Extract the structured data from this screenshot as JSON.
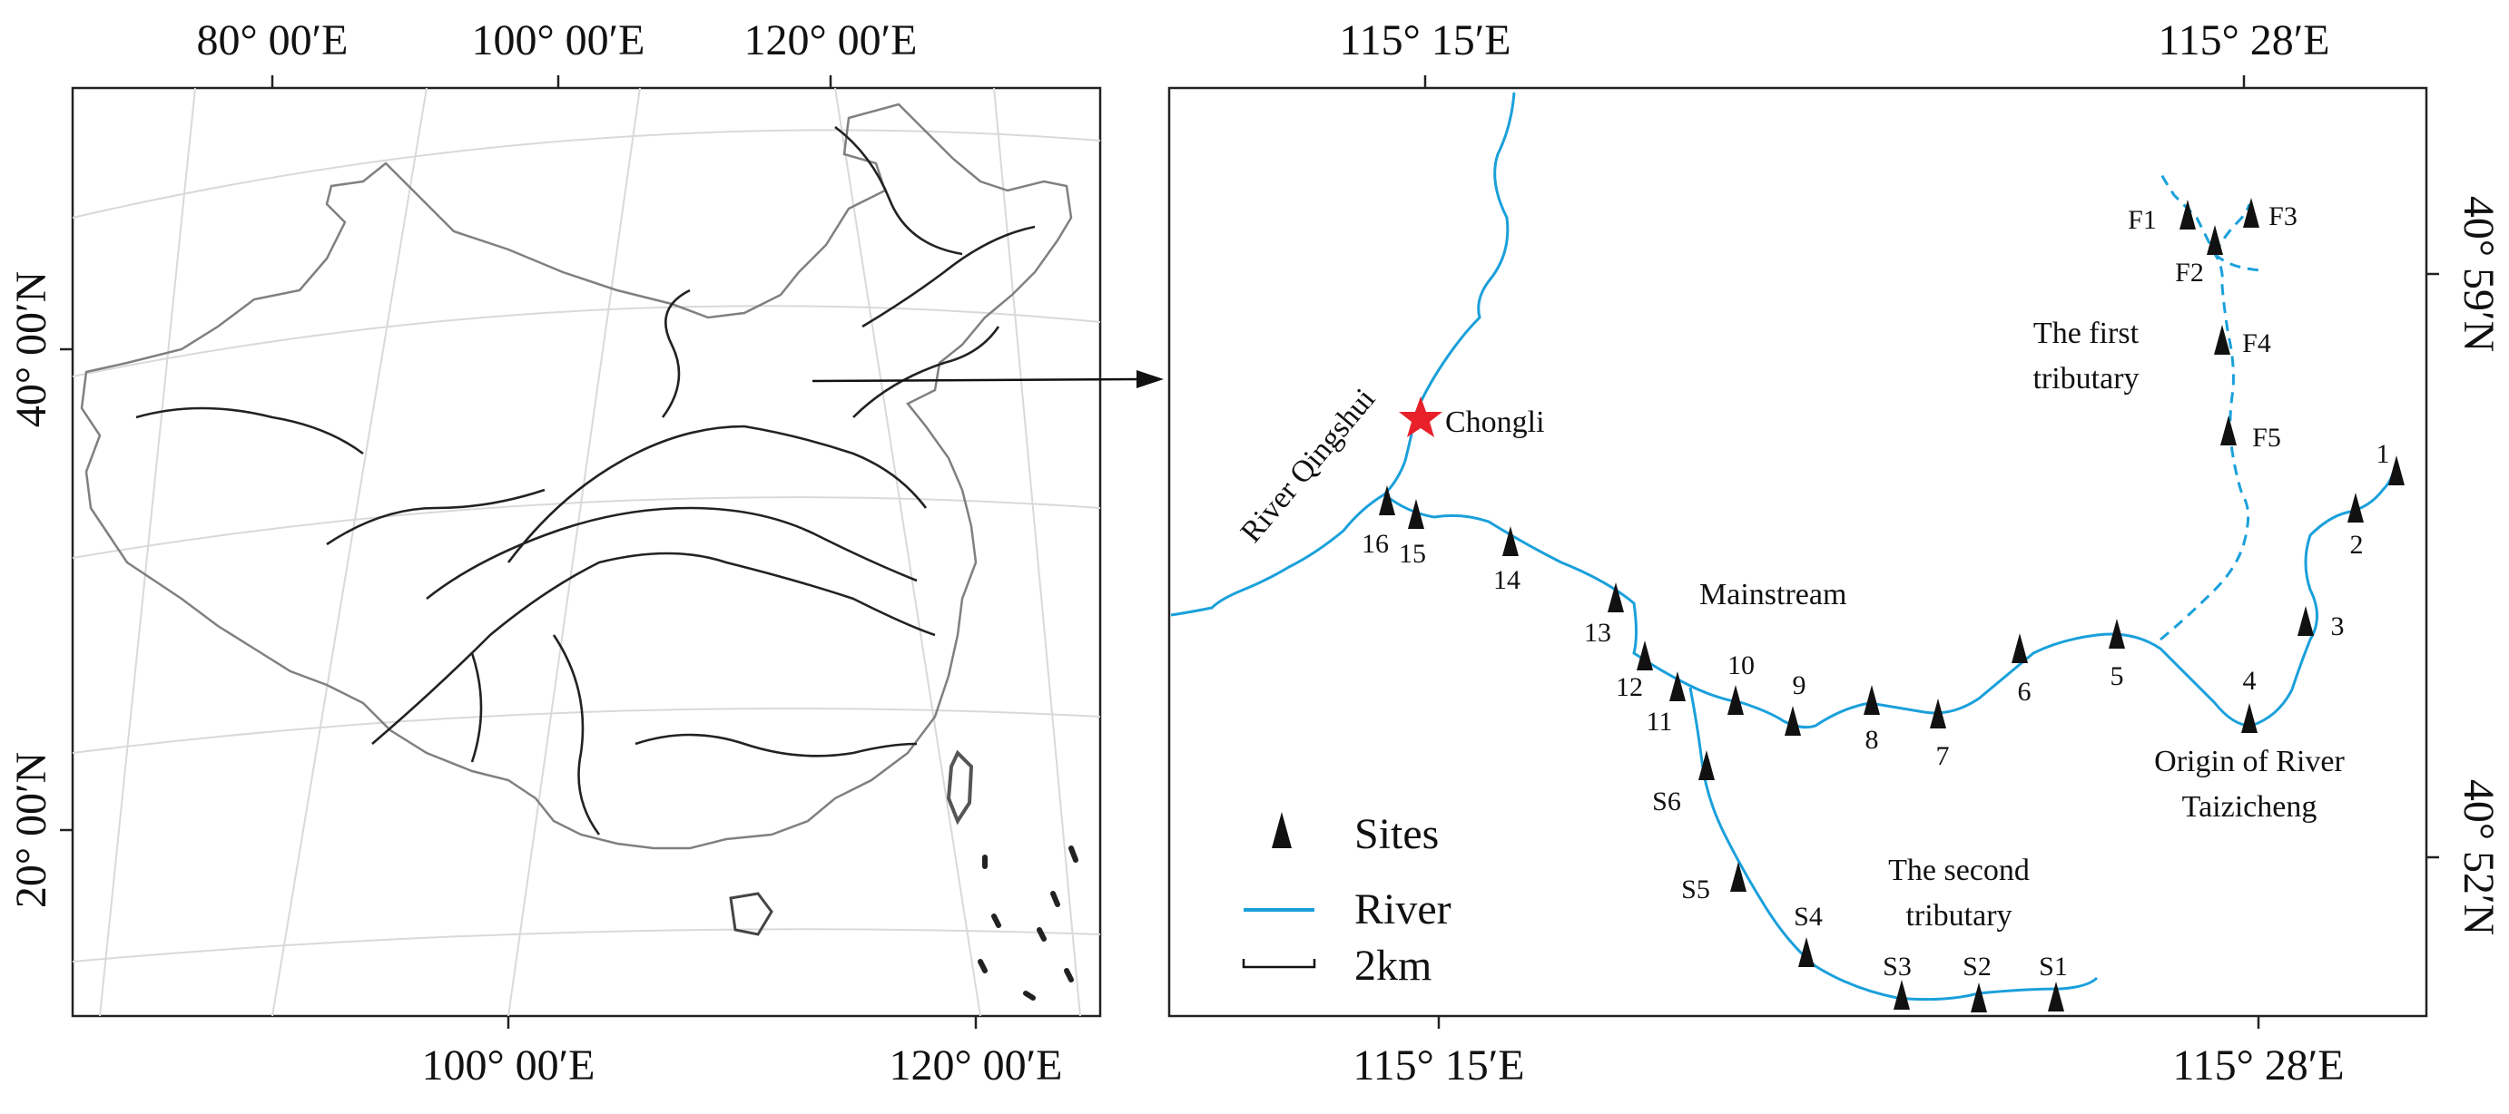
{
  "left_map": {
    "top_labels": [
      "80° 00′E",
      "100° 00′E",
      "120° 00′E"
    ],
    "bottom_labels": [
      "100° 00′E",
      "120° 00′E"
    ],
    "left_labels": [
      "40° 00′N",
      "20° 00′N"
    ]
  },
  "right_map": {
    "top_labels": [
      "115° 15′E",
      "115° 28′E"
    ],
    "bottom_labels": [
      "115° 15′E",
      "115° 28′E"
    ],
    "right_labels": [
      "40° 59′N",
      "40° 52′N"
    ],
    "town": "Chongli",
    "river_names": {
      "qingshui": "River Qingshui",
      "mainstream": "Mainstream",
      "first_tributary_line1": "The first",
      "first_tributary_line2": "tributary",
      "second_tributary_line1": "The second",
      "second_tributary_line2": "tributary",
      "origin_line1": "Origin of River",
      "origin_line2": "Taizicheng"
    },
    "sites": {
      "mainstream": [
        "1",
        "2",
        "3",
        "4",
        "5",
        "6",
        "7",
        "8",
        "9",
        "10",
        "11",
        "12",
        "13",
        "14",
        "15",
        "16"
      ],
      "first_tributary": [
        "F1",
        "F2",
        "F3",
        "F4",
        "F5"
      ],
      "second_tributary": [
        "S1",
        "S2",
        "S3",
        "S4",
        "S5",
        "S6"
      ]
    },
    "legend": {
      "sites": "Sites",
      "river": "River",
      "scale": "2km"
    },
    "colors": {
      "river": "#1aa0db",
      "star": "#e8202a",
      "site_marker": "#111111"
    }
  }
}
